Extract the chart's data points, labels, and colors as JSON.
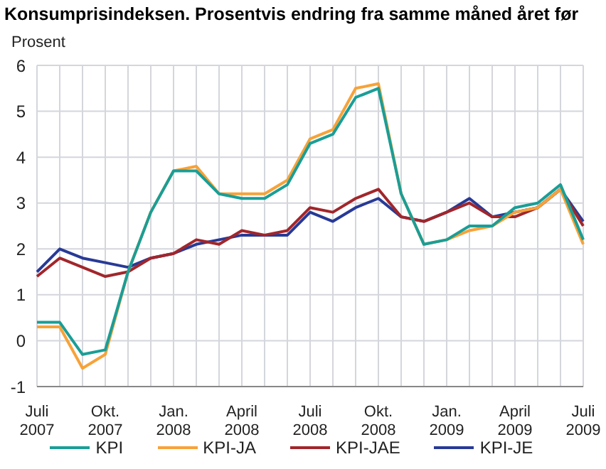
{
  "chart_data": {
    "type": "line",
    "title": "Konsumprisindeksen. Prosentvis endring fra samme måned året før",
    "ylabel": "Prosent",
    "categories": [
      "Juli 2007",
      null,
      null,
      "Okt. 2007",
      null,
      null,
      "Jan. 2008",
      null,
      null,
      "April 2008",
      null,
      null,
      "Juli 2008",
      null,
      null,
      "Okt. 2008",
      null,
      null,
      "Jan. 2009",
      null,
      null,
      "April 2009",
      null,
      null,
      "Juli 2009"
    ],
    "series": [
      {
        "name": "KPI",
        "color": "#1a9e96",
        "values": [
          0.4,
          0.4,
          -0.3,
          -0.2,
          1.5,
          2.8,
          3.7,
          3.7,
          3.2,
          3.1,
          3.1,
          3.4,
          4.3,
          4.5,
          5.3,
          5.5,
          3.2,
          2.1,
          2.2,
          2.5,
          2.5,
          2.9,
          3.0,
          3.4,
          2.2
        ]
      },
      {
        "name": "KPI-JA",
        "color": "#f7a238",
        "values": [
          0.3,
          0.3,
          -0.6,
          -0.3,
          1.5,
          2.8,
          3.7,
          3.8,
          3.2,
          3.2,
          3.2,
          3.5,
          4.4,
          4.6,
          5.5,
          5.6,
          3.2,
          2.1,
          2.2,
          2.4,
          2.5,
          2.8,
          2.9,
          3.3,
          2.1
        ]
      },
      {
        "name": "KPI-JAE",
        "color": "#a1262b",
        "values": [
          1.4,
          1.8,
          1.6,
          1.4,
          1.5,
          1.8,
          1.9,
          2.2,
          2.1,
          2.4,
          2.3,
          2.4,
          2.9,
          2.8,
          3.1,
          3.3,
          2.7,
          2.6,
          2.8,
          3.0,
          2.7,
          2.7,
          2.9,
          3.3,
          2.5
        ]
      },
      {
        "name": "KPI-JE",
        "color": "#283a96",
        "values": [
          1.5,
          2.0,
          1.8,
          1.7,
          1.6,
          1.8,
          1.9,
          2.1,
          2.2,
          2.3,
          2.3,
          2.3,
          2.8,
          2.6,
          2.9,
          3.1,
          2.7,
          2.6,
          2.8,
          3.1,
          2.7,
          2.8,
          2.9,
          3.3,
          2.6
        ]
      }
    ],
    "ylim": [
      -1,
      6
    ],
    "yticks": [
      -1,
      0,
      1,
      2,
      3,
      4,
      5,
      6
    ],
    "grid": true,
    "legend": "bottom",
    "marker": "none",
    "line_style": "solid"
  }
}
